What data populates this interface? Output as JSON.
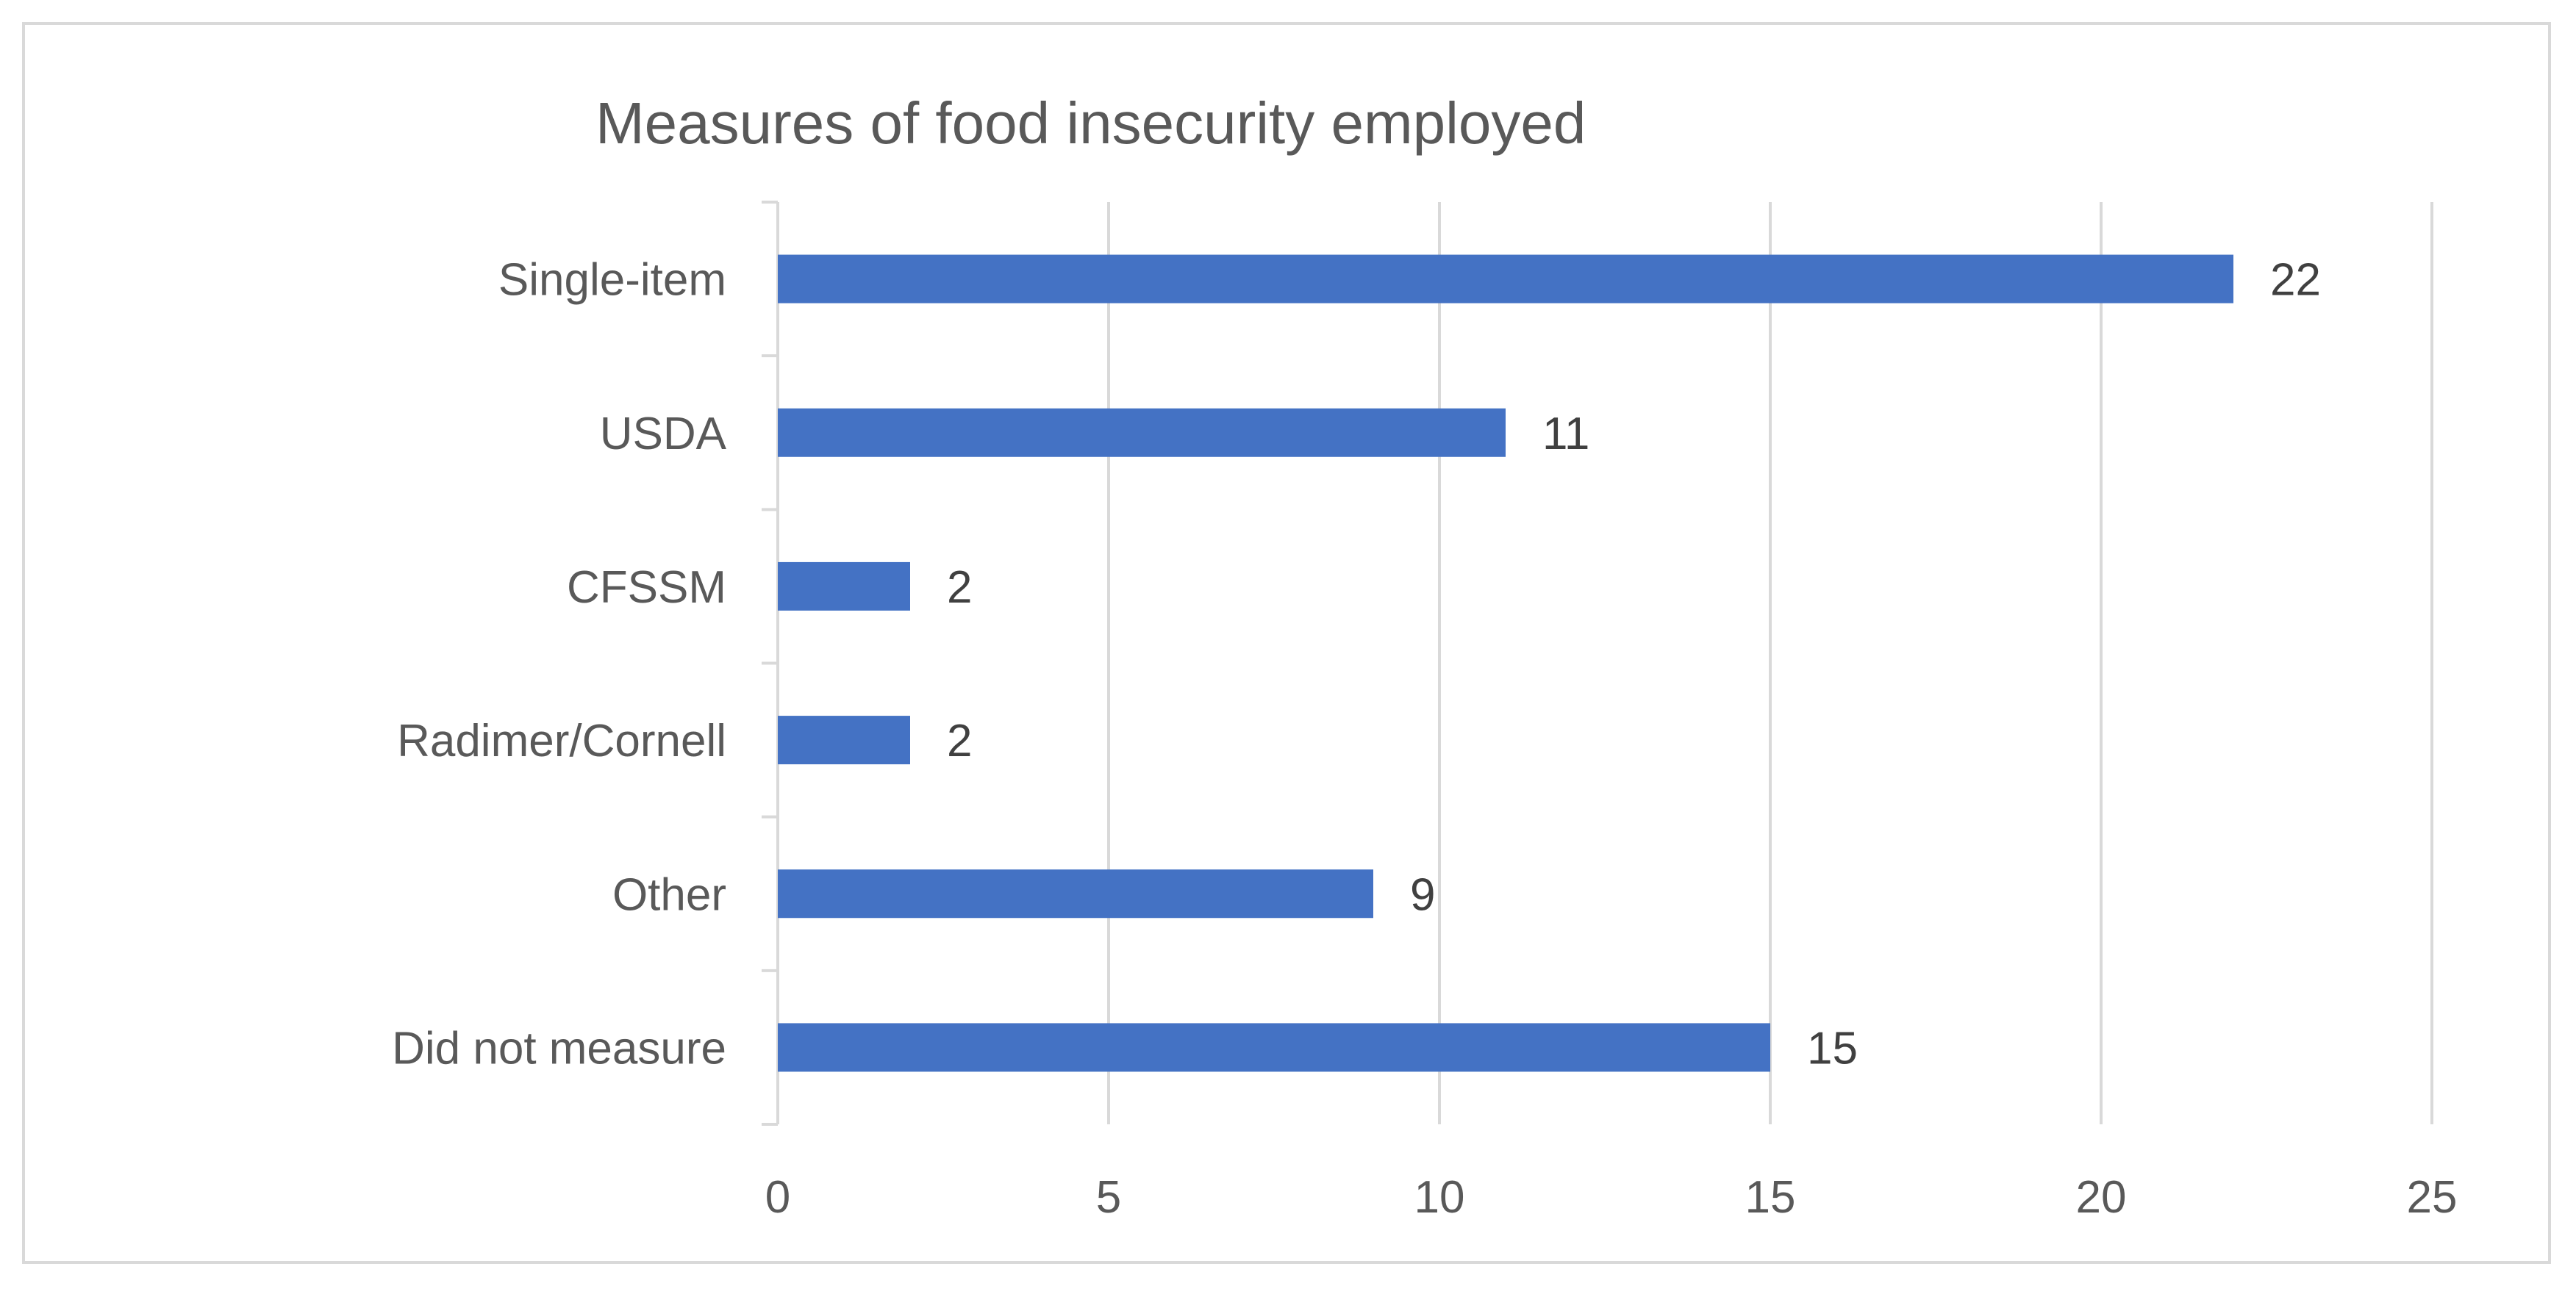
{
  "chart_data": {
    "type": "bar",
    "orientation": "horizontal",
    "title": "Measures of food insecurity employed",
    "categories": [
      "Single-item",
      "USDA",
      "CFSSM",
      "Radimer/Cornell",
      "Other",
      "Did not measure"
    ],
    "values": [
      22,
      11,
      2,
      2,
      9,
      15
    ],
    "xlim": [
      0,
      25
    ],
    "xticks": [
      0,
      5,
      10,
      15,
      20,
      25
    ],
    "xtick_labels": [
      "0",
      "5",
      "10",
      "15",
      "20",
      "25"
    ],
    "xlabel": "",
    "ylabel": "",
    "grid": true,
    "legend": "none",
    "data_labels": [
      "22",
      "11",
      "2",
      "2",
      "9",
      "15"
    ],
    "bar_color": "#4472C4",
    "grid_color": "#D9D9D9",
    "text_color": "#595959"
  }
}
